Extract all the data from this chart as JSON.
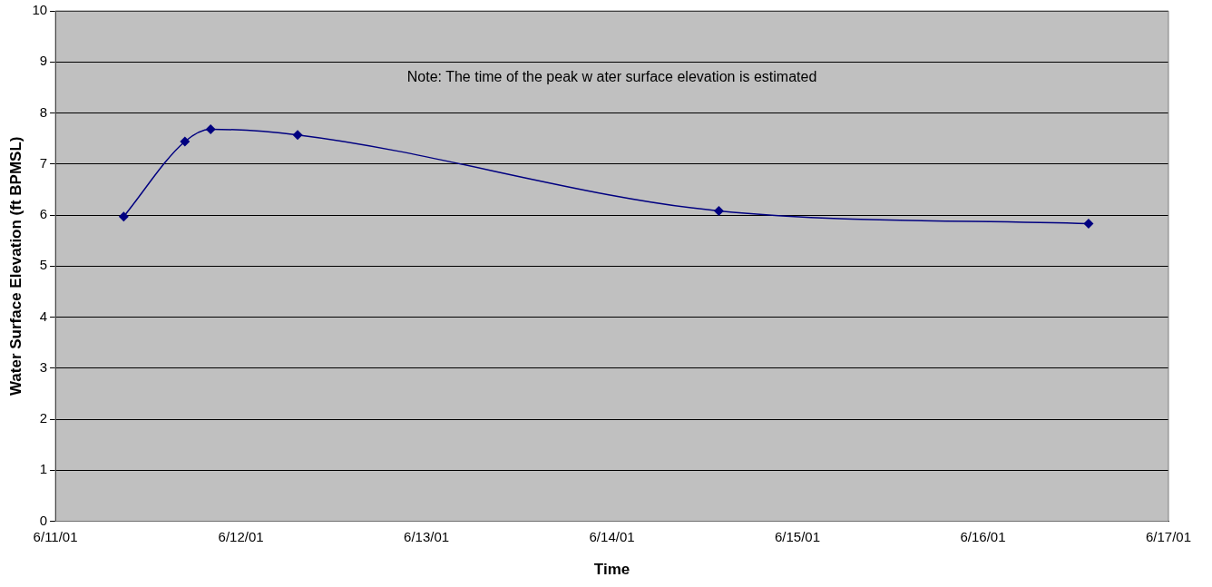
{
  "chart_data": {
    "type": "line",
    "xlabel": "Time",
    "ylabel": "Water Surface Elevation (ft BPMSL)",
    "x": [
      "--06-11T08:50",
      "--06-11T16:45",
      "--06-11T20:05",
      "--06-12T07:20",
      "--06-14T13:50",
      "--06-16T13:40"
    ],
    "series": [
      {
        "color": "#000080",
        "values": [
          5.97,
          7.44,
          7.68,
          7.57,
          6.08,
          5.83
        ]
      }
    ],
    "xlim": [
      "--06-11",
      "--06-17"
    ],
    "xticks": [
      {
        "value": "--06-11",
        "label": "6/11/01"
      },
      {
        "value": "--06-12",
        "label": "6/12/01"
      },
      {
        "value": "--06-13",
        "label": "6/13/01"
      },
      {
        "value": "--06-14",
        "label": "6/14/01"
      },
      {
        "value": "--06-15",
        "label": "6/15/01"
      },
      {
        "value": "--06-16",
        "label": "6/16/01"
      },
      {
        "value": "--06-17",
        "label": "6/17/01"
      }
    ],
    "ylim": [
      0,
      10
    ],
    "yticks": [
      0,
      1,
      2,
      3,
      4,
      5,
      6,
      7,
      8,
      9,
      10
    ],
    "grid": "y",
    "legend": false,
    "marker": "diamond",
    "line_style": "solid",
    "annotations": [
      "Note: The time of the peak w ater surface elevation is estimated"
    ]
  }
}
